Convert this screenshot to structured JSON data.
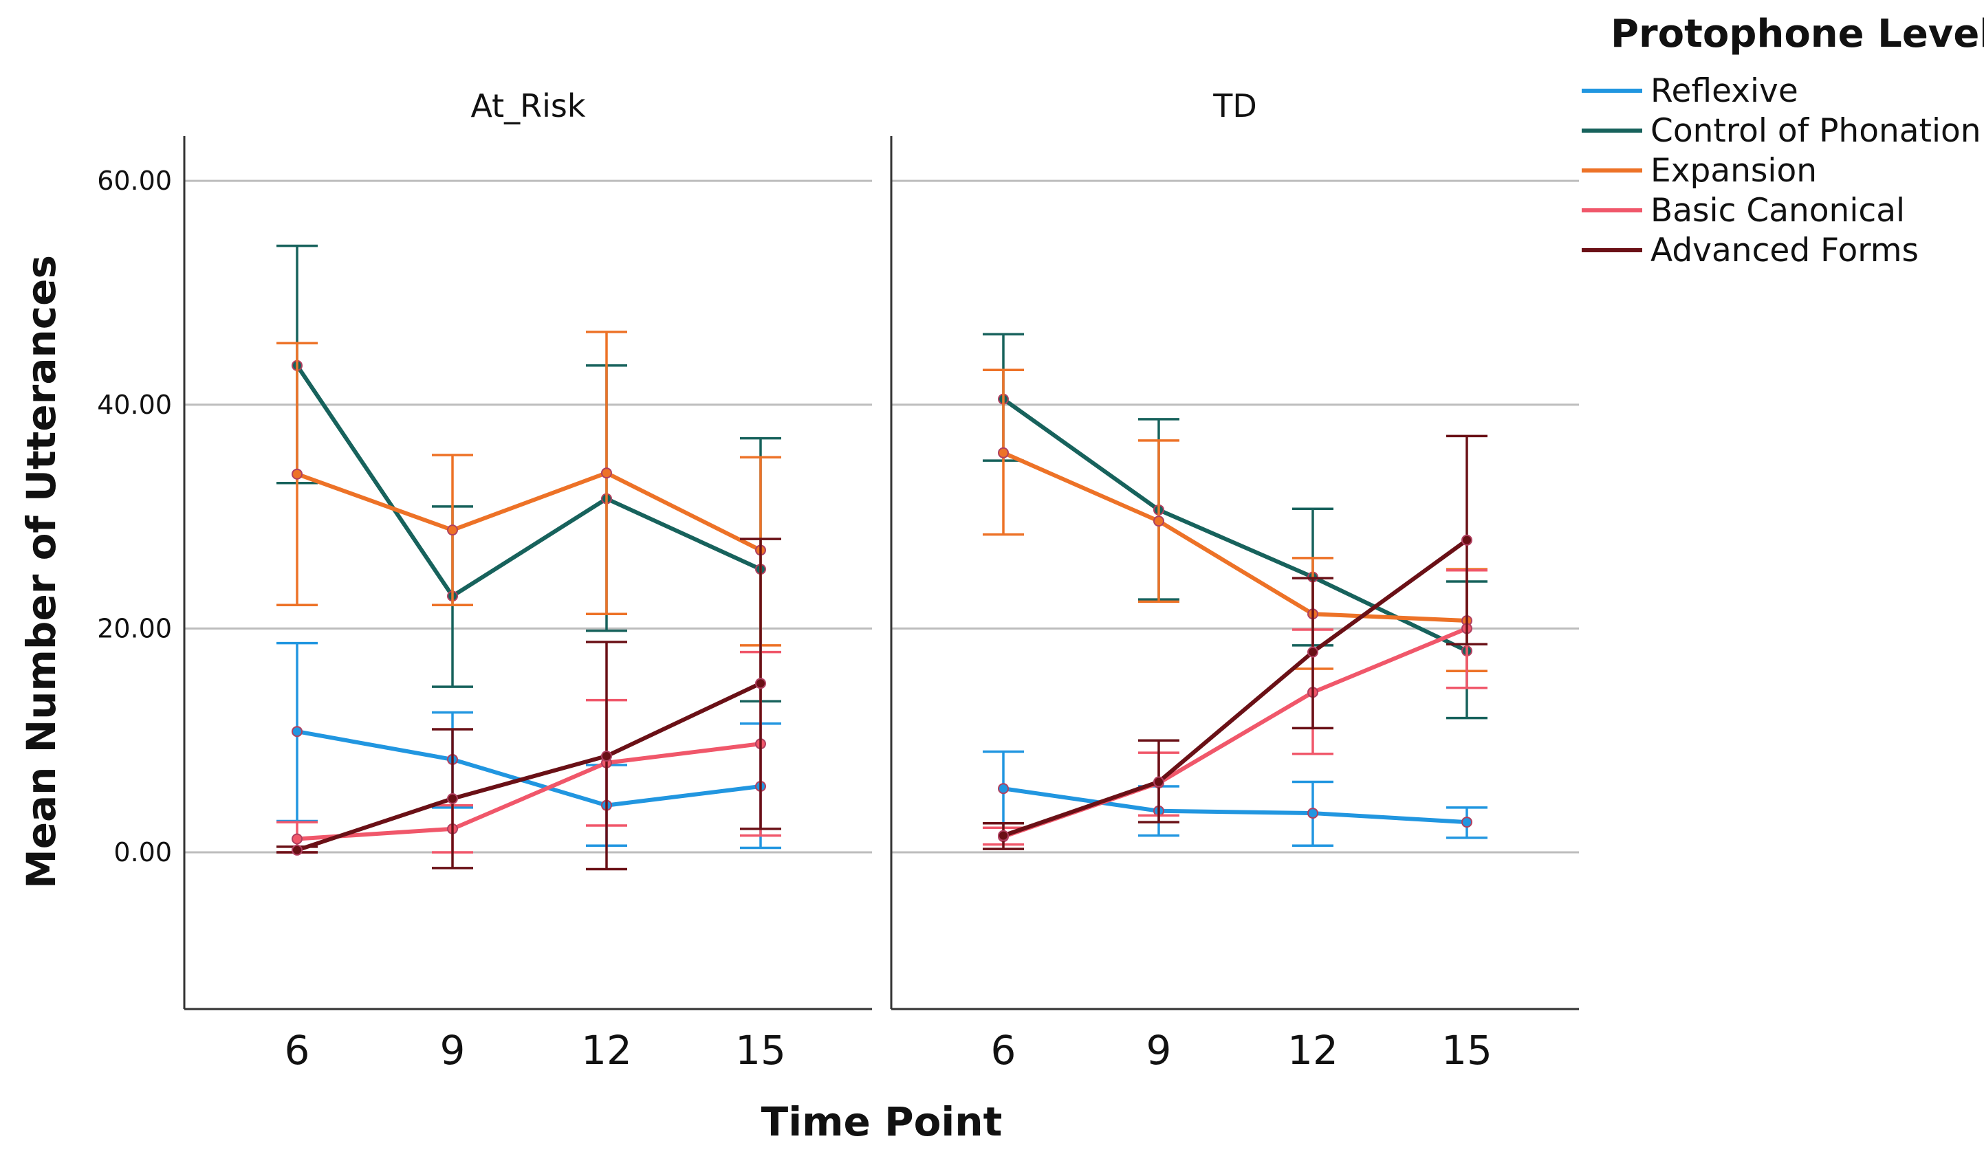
{
  "chart_data": {
    "type": "line",
    "xlabel": "Time Point",
    "ylabel": "Mean Number of Utterances",
    "categories": [
      "6",
      "9",
      "12",
      "15"
    ],
    "ylim": [
      -14,
      64
    ],
    "yticks": [
      0,
      20,
      40,
      60
    ],
    "ytick_labels": [
      "0.00",
      "20.00",
      "40.00",
      "60.00"
    ],
    "grid": true,
    "legend": {
      "title": "Protophone Level",
      "placement": "top-right outside",
      "entries": [
        "Reflexive",
        "Control of Phonation",
        "Expansion",
        "Basic Canonical",
        "Advanced Forms"
      ]
    },
    "series_colors": {
      "Reflexive": "#2196e0",
      "Control of Phonation": "#17625c",
      "Expansion": "#ed7227",
      "Basic Canonical": "#f0576a",
      "Advanced Forms": "#6a1016"
    },
    "panels": [
      {
        "title": "At_Risk",
        "series": [
          {
            "name": "Reflexive",
            "values": [
              10.8,
              8.3,
              4.2,
              5.9
            ],
            "err_low": [
              2.8,
              4.0,
              0.6,
              0.4
            ],
            "err_high": [
              18.7,
              12.5,
              7.8,
              11.5
            ]
          },
          {
            "name": "Control of Phonation",
            "values": [
              43.5,
              22.9,
              31.6,
              25.3
            ],
            "err_low": [
              33.0,
              14.8,
              19.8,
              13.5
            ],
            "err_high": [
              54.2,
              30.9,
              43.5,
              37.0
            ]
          },
          {
            "name": "Expansion",
            "values": [
              33.8,
              28.8,
              33.9,
              27.0
            ],
            "err_low": [
              22.1,
              22.1,
              21.3,
              18.5
            ],
            "err_high": [
              45.5,
              35.5,
              46.5,
              35.3
            ]
          },
          {
            "name": "Basic Canonical",
            "values": [
              1.2,
              2.1,
              8.0,
              9.7
            ],
            "err_low": [
              0.0,
              0.0,
              2.4,
              1.5
            ],
            "err_high": [
              2.7,
              4.2,
              13.6,
              17.9
            ]
          },
          {
            "name": "Advanced Forms",
            "values": [
              0.2,
              4.8,
              8.6,
              15.1
            ],
            "err_low": [
              0.0,
              -1.4,
              -1.5,
              2.1
            ],
            "err_high": [
              0.5,
              11.0,
              18.8,
              28.0
            ]
          }
        ]
      },
      {
        "title": "TD",
        "series": [
          {
            "name": "Reflexive",
            "values": [
              5.7,
              3.7,
              3.5,
              2.7
            ],
            "err_low": [
              2.2,
              1.5,
              0.6,
              1.3
            ],
            "err_high": [
              9.0,
              5.9,
              6.3,
              4.0
            ]
          },
          {
            "name": "Control of Phonation",
            "values": [
              40.5,
              30.6,
              24.6,
              18.0
            ],
            "err_low": [
              35.0,
              22.6,
              18.5,
              12.0
            ],
            "err_high": [
              46.3,
              38.7,
              30.7,
              24.2
            ]
          },
          {
            "name": "Expansion",
            "values": [
              35.7,
              29.6,
              21.3,
              20.7
            ],
            "err_low": [
              28.4,
              22.4,
              16.4,
              16.2
            ],
            "err_high": [
              43.1,
              36.8,
              26.3,
              25.3
            ]
          },
          {
            "name": "Basic Canonical",
            "values": [
              1.4,
              6.2,
              14.3,
              20.0
            ],
            "err_low": [
              0.7,
              3.3,
              8.8,
              14.7
            ],
            "err_high": [
              2.2,
              8.9,
              19.9,
              25.2
            ]
          },
          {
            "name": "Advanced Forms",
            "values": [
              1.5,
              6.3,
              17.9,
              27.9
            ],
            "err_low": [
              0.3,
              2.7,
              11.1,
              18.6
            ],
            "err_high": [
              2.6,
              10.0,
              24.5,
              37.2
            ]
          }
        ]
      }
    ]
  }
}
